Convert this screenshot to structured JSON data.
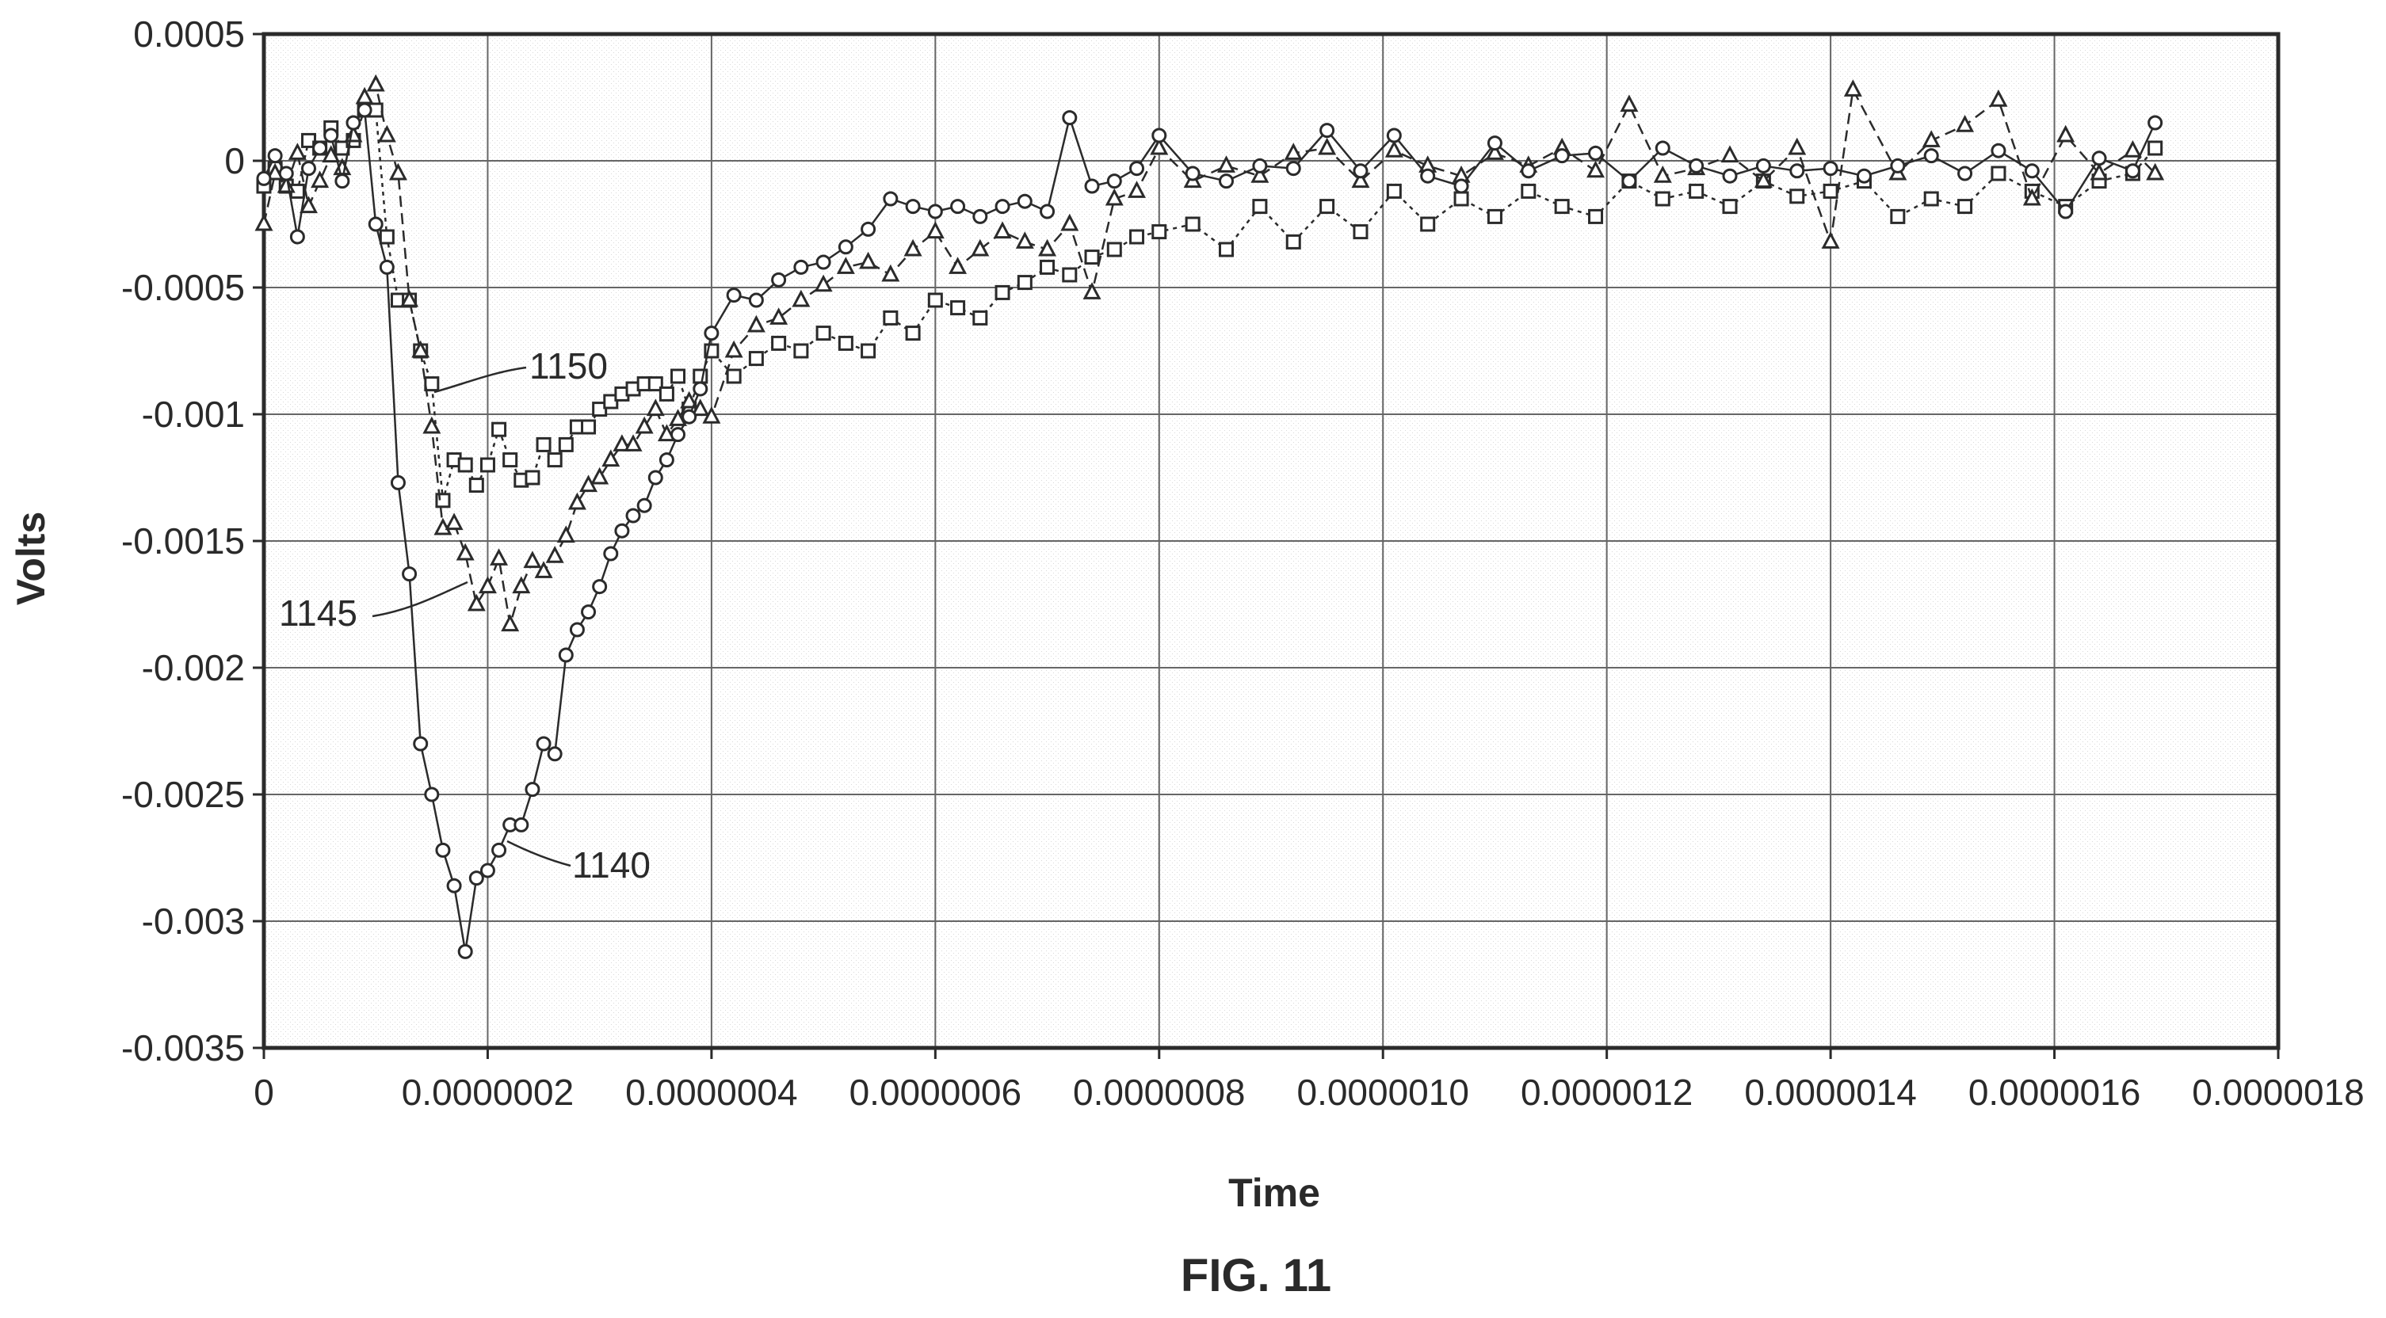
{
  "figure_label": "FIG. 11",
  "colors": {
    "ink": "#2b2b2b",
    "grid": "#666666",
    "background": "#ffffff"
  },
  "chart_data": {
    "type": "scatter",
    "title": "",
    "xlabel": "Time",
    "ylabel": "Volts",
    "xlim": [
      0,
      1.8e-06
    ],
    "ylim": [
      -0.0035,
      0.0005
    ],
    "x_ticks": [
      0,
      2e-07,
      4e-07,
      6e-07,
      8e-07,
      1e-06,
      1.2e-06,
      1.4e-06,
      1.6e-06,
      1.8e-06
    ],
    "x_tick_labels": [
      "0",
      "0.0000002",
      "0.0000004",
      "0.0000006",
      "0.0000008",
      "0.0000010",
      "0.0000012",
      "0.0000014",
      "0.0000016",
      "0.0000018"
    ],
    "y_ticks": [
      0.0005,
      0,
      -0.0005,
      -0.001,
      -0.0015,
      -0.002,
      -0.0025,
      -0.003,
      -0.0035
    ],
    "y_tick_labels": [
      "0.0005",
      "0",
      "-0.0005",
      "-0.001",
      "-0.0015",
      "-0.002",
      "-0.0025",
      "-0.003",
      "-0.0035"
    ],
    "grid": true,
    "legend": "none",
    "series": [
      {
        "id": "1140",
        "marker": "circle",
        "line": "solid",
        "x": [
          0,
          1e-08,
          2e-08,
          3e-08,
          4e-08,
          5e-08,
          6e-08,
          7e-08,
          8e-08,
          9e-08,
          1e-07,
          1.1e-07,
          1.2e-07,
          1.3e-07,
          1.4e-07,
          1.5e-07,
          1.6e-07,
          1.7e-07,
          1.8e-07,
          1.9e-07,
          2e-07,
          2.1e-07,
          2.2e-07,
          2.3e-07,
          2.4e-07,
          2.5e-07,
          2.6e-07,
          2.7e-07,
          2.8e-07,
          2.9e-07,
          3e-07,
          3.1e-07,
          3.2e-07,
          3.3e-07,
          3.4e-07,
          3.5e-07,
          3.6e-07,
          3.7e-07,
          3.8e-07,
          3.9e-07,
          4e-07,
          4.2e-07,
          4.4e-07,
          4.6e-07,
          4.8e-07,
          5e-07,
          5.2e-07,
          5.4e-07,
          5.6e-07,
          5.8e-07,
          6e-07,
          6.2e-07,
          6.4e-07,
          6.6e-07,
          6.8e-07,
          7e-07,
          7.2e-07,
          7.4e-07,
          7.6e-07,
          7.8e-07,
          8e-07,
          8.3e-07,
          8.6e-07,
          8.9e-07,
          9.2e-07,
          9.5e-07,
          9.8e-07,
          1.01e-06,
          1.04e-06,
          1.07e-06,
          1.1e-06,
          1.13e-06,
          1.16e-06,
          1.19e-06,
          1.22e-06,
          1.25e-06,
          1.28e-06,
          1.31e-06,
          1.34e-06,
          1.37e-06,
          1.4e-06,
          1.43e-06,
          1.46e-06,
          1.49e-06,
          1.52e-06,
          1.55e-06,
          1.58e-06,
          1.61e-06,
          1.64e-06,
          1.67e-06,
          1.69e-06
        ],
        "y": [
          -7e-05,
          2e-05,
          -5e-05,
          -0.0003,
          -3e-05,
          5e-05,
          0.0001,
          -8e-05,
          0.00015,
          0.0002,
          -0.00025,
          -0.00042,
          -0.00127,
          -0.00163,
          -0.0023,
          -0.0025,
          -0.00272,
          -0.00286,
          -0.00312,
          -0.00283,
          -0.0028,
          -0.00272,
          -0.00262,
          -0.00262,
          -0.00248,
          -0.0023,
          -0.00234,
          -0.00195,
          -0.00185,
          -0.00178,
          -0.00168,
          -0.00155,
          -0.00146,
          -0.0014,
          -0.00136,
          -0.00125,
          -0.00118,
          -0.00108,
          -0.00101,
          -0.0009,
          -0.00068,
          -0.00053,
          -0.00055,
          -0.00047,
          -0.00042,
          -0.0004,
          -0.00034,
          -0.00027,
          -0.00015,
          -0.00018,
          -0.0002,
          -0.00018,
          -0.00022,
          -0.00018,
          -0.00016,
          -0.0002,
          0.00017,
          -0.0001,
          -8e-05,
          -3e-05,
          0.0001,
          -5e-05,
          -8e-05,
          -2e-05,
          -3e-05,
          0.00012,
          -4e-05,
          0.0001,
          -6e-05,
          -0.0001,
          7e-05,
          -4e-05,
          2e-05,
          3e-05,
          -8e-05,
          5e-05,
          -2e-05,
          -6e-05,
          -2e-05,
          -4e-05,
          -3e-05,
          -6e-05,
          -2e-05,
          2e-05,
          -5e-05,
          4e-05,
          -4e-05,
          -0.0002,
          1e-05,
          -4e-05,
          0.00015
        ]
      },
      {
        "id": "1145",
        "marker": "triangle",
        "line": "dashed",
        "x": [
          0,
          1e-08,
          2e-08,
          3e-08,
          4e-08,
          5e-08,
          6e-08,
          7e-08,
          8e-08,
          9e-08,
          1e-07,
          1.1e-07,
          1.2e-07,
          1.3e-07,
          1.4e-07,
          1.5e-07,
          1.6e-07,
          1.7e-07,
          1.8e-07,
          1.9e-07,
          2e-07,
          2.1e-07,
          2.2e-07,
          2.3e-07,
          2.4e-07,
          2.5e-07,
          2.6e-07,
          2.7e-07,
          2.8e-07,
          2.9e-07,
          3e-07,
          3.1e-07,
          3.2e-07,
          3.3e-07,
          3.4e-07,
          3.5e-07,
          3.6e-07,
          3.7e-07,
          3.8e-07,
          3.9e-07,
          4e-07,
          4.2e-07,
          4.4e-07,
          4.6e-07,
          4.8e-07,
          5e-07,
          5.2e-07,
          5.4e-07,
          5.6e-07,
          5.8e-07,
          6e-07,
          6.2e-07,
          6.4e-07,
          6.6e-07,
          6.8e-07,
          7e-07,
          7.2e-07,
          7.4e-07,
          7.6e-07,
          7.8e-07,
          8e-07,
          8.3e-07,
          8.6e-07,
          8.9e-07,
          9.2e-07,
          9.5e-07,
          9.8e-07,
          1.01e-06,
          1.04e-06,
          1.07e-06,
          1.1e-06,
          1.13e-06,
          1.16e-06,
          1.19e-06,
          1.22e-06,
          1.25e-06,
          1.28e-06,
          1.31e-06,
          1.34e-06,
          1.37e-06,
          1.4e-06,
          1.42e-06,
          1.46e-06,
          1.49e-06,
          1.52e-06,
          1.55e-06,
          1.58e-06,
          1.61e-06,
          1.64e-06,
          1.67e-06,
          1.69e-06
        ],
        "y": [
          -0.00025,
          -5e-05,
          -0.0001,
          3e-05,
          -0.00018,
          -8e-05,
          2e-05,
          -3e-05,
          0.0001,
          0.00025,
          0.0003,
          0.0001,
          -5e-05,
          -0.00055,
          -0.00075,
          -0.00105,
          -0.00145,
          -0.00143,
          -0.00155,
          -0.00175,
          -0.00168,
          -0.00157,
          -0.00183,
          -0.00168,
          -0.00158,
          -0.00162,
          -0.00156,
          -0.00148,
          -0.00135,
          -0.00128,
          -0.00125,
          -0.00118,
          -0.00112,
          -0.00112,
          -0.00105,
          -0.00098,
          -0.00108,
          -0.00102,
          -0.00095,
          -0.00098,
          -0.00101,
          -0.00075,
          -0.00065,
          -0.00062,
          -0.00055,
          -0.00049,
          -0.00042,
          -0.0004,
          -0.00045,
          -0.00035,
          -0.00028,
          -0.00042,
          -0.00035,
          -0.00028,
          -0.00032,
          -0.00035,
          -0.00025,
          -0.00052,
          -0.00015,
          -0.00012,
          5e-05,
          -8e-05,
          -2e-05,
          -6e-05,
          3e-05,
          5e-05,
          -8e-05,
          4e-05,
          -2e-05,
          -6e-05,
          3e-05,
          -2e-05,
          5e-05,
          -4e-05,
          0.00022,
          -6e-05,
          -3e-05,
          2e-05,
          -8e-05,
          5e-05,
          -0.00032,
          0.00028,
          -5e-05,
          8e-05,
          0.00014,
          0.00024,
          -0.00015,
          0.0001,
          -5e-05,
          4e-05,
          -5e-05
        ]
      },
      {
        "id": "1150",
        "marker": "square",
        "line": "dotted",
        "x": [
          0,
          1e-08,
          2e-08,
          3e-08,
          4e-08,
          5e-08,
          6e-08,
          7e-08,
          8e-08,
          9e-08,
          1e-07,
          1.1e-07,
          1.2e-07,
          1.3e-07,
          1.4e-07,
          1.5e-07,
          1.6e-07,
          1.7e-07,
          1.8e-07,
          1.9e-07,
          2e-07,
          2.1e-07,
          2.2e-07,
          2.3e-07,
          2.4e-07,
          2.5e-07,
          2.6e-07,
          2.7e-07,
          2.8e-07,
          2.9e-07,
          3e-07,
          3.1e-07,
          3.2e-07,
          3.3e-07,
          3.4e-07,
          3.5e-07,
          3.6e-07,
          3.7e-07,
          3.8e-07,
          3.9e-07,
          4e-07,
          4.2e-07,
          4.4e-07,
          4.6e-07,
          4.8e-07,
          5e-07,
          5.2e-07,
          5.4e-07,
          5.6e-07,
          5.8e-07,
          6e-07,
          6.2e-07,
          6.4e-07,
          6.6e-07,
          6.8e-07,
          7e-07,
          7.2e-07,
          7.4e-07,
          7.6e-07,
          7.8e-07,
          8e-07,
          8.3e-07,
          8.6e-07,
          8.9e-07,
          9.2e-07,
          9.5e-07,
          9.8e-07,
          1.01e-06,
          1.04e-06,
          1.07e-06,
          1.1e-06,
          1.13e-06,
          1.16e-06,
          1.19e-06,
          1.22e-06,
          1.25e-06,
          1.28e-06,
          1.31e-06,
          1.34e-06,
          1.37e-06,
          1.4e-06,
          1.43e-06,
          1.46e-06,
          1.49e-06,
          1.52e-06,
          1.55e-06,
          1.58e-06,
          1.61e-06,
          1.64e-06,
          1.67e-06,
          1.69e-06
        ],
        "y": [
          -0.0001,
          -3e-05,
          -0.0001,
          -0.00012,
          8e-05,
          5e-05,
          0.00013,
          5e-05,
          8e-05,
          0.0002,
          0.0002,
          -0.0003,
          -0.00055,
          -0.00055,
          -0.00075,
          -0.00088,
          -0.00134,
          -0.00118,
          -0.0012,
          -0.00128,
          -0.0012,
          -0.00106,
          -0.00118,
          -0.00126,
          -0.00125,
          -0.00112,
          -0.00118,
          -0.00112,
          -0.00105,
          -0.00105,
          -0.00098,
          -0.00095,
          -0.00092,
          -0.0009,
          -0.00088,
          -0.00088,
          -0.00092,
          -0.00085,
          -0.00098,
          -0.00085,
          -0.00075,
          -0.00085,
          -0.00078,
          -0.00072,
          -0.00075,
          -0.00068,
          -0.00072,
          -0.00075,
          -0.00062,
          -0.00068,
          -0.00055,
          -0.00058,
          -0.00062,
          -0.00052,
          -0.00048,
          -0.00042,
          -0.00045,
          -0.00038,
          -0.00035,
          -0.0003,
          -0.00028,
          -0.00025,
          -0.00035,
          -0.00018,
          -0.00032,
          -0.00018,
          -0.00028,
          -0.00012,
          -0.00025,
          -0.00015,
          -0.00022,
          -0.00012,
          -0.00018,
          -0.00022,
          -8e-05,
          -0.00015,
          -0.00012,
          -0.00018,
          -8e-05,
          -0.00014,
          -0.00012,
          -8e-05,
          -0.00022,
          -0.00015,
          -0.00018,
          -5e-05,
          -0.00012,
          -0.00018,
          -8e-05,
          -5e-05,
          5e-05
        ]
      }
    ],
    "annotations": [
      {
        "text": "1140",
        "series": "1140"
      },
      {
        "text": "1145",
        "series": "1145"
      },
      {
        "text": "1150",
        "series": "1150"
      }
    ]
  }
}
